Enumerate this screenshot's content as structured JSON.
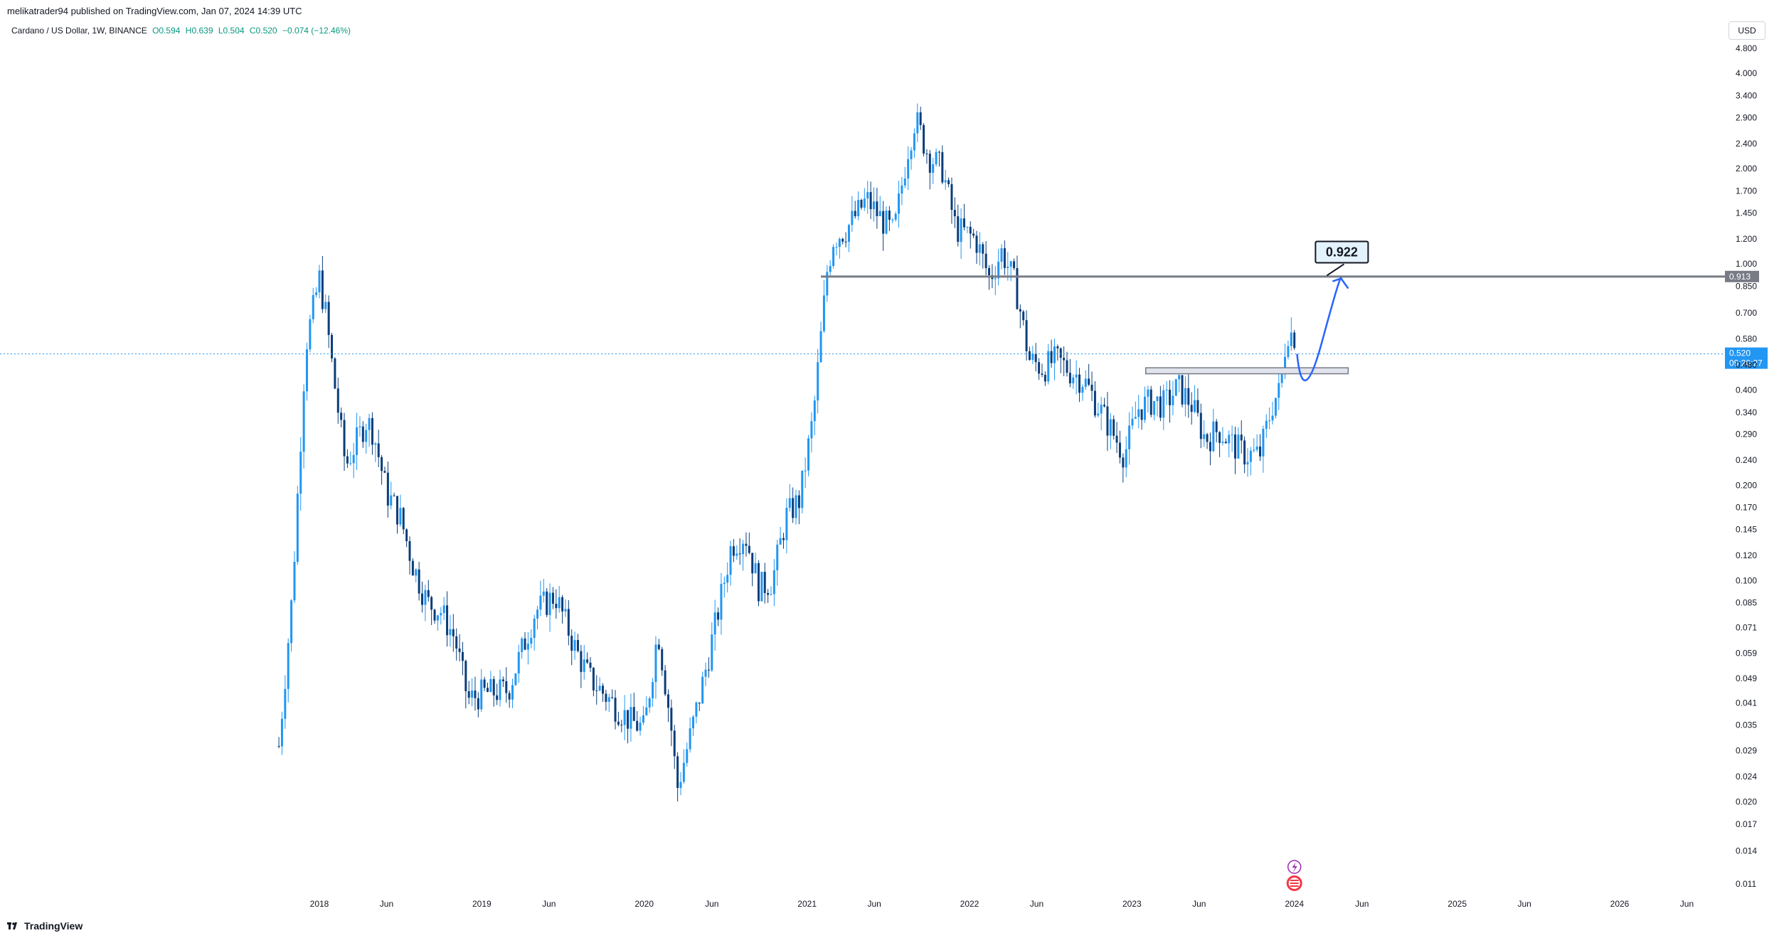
{
  "header": {
    "publisher": "melikatrader94 published on TradingView.com, Jan 07, 2024 14:39 UTC",
    "symbol": "Cardano / US Dollar, 1W, BINANCE",
    "open": "O0.594",
    "high": "H0.639",
    "low": "L0.504",
    "close": "C0.520",
    "change": "−0.074 (−12.46%)",
    "currency": "USD"
  },
  "footer": {
    "brand": "TradingView"
  },
  "colors": {
    "up": "#089981",
    "down": "#0a3d7a",
    "candle": "#2196f3",
    "arrow": "#2962ff",
    "level_line": "#787b86",
    "price_badge": "#2196f3",
    "level_badge": "#787b86"
  },
  "icons": {
    "chart_events": [
      "lightning-event-icon",
      "us-flag-event-icon"
    ],
    "footer_logo": "tradingview-logo-icon"
  },
  "chart_data": {
    "type": "candlestick",
    "title": "Cardano / US Dollar, 1W, BINANCE",
    "scale": "log",
    "grid": false,
    "y_ticks": [
      "4.800",
      "4.000",
      "3.400",
      "2.900",
      "2.400",
      "2.000",
      "1.700",
      "1.450",
      "1.200",
      "1.000",
      "0.850",
      "0.700",
      "0.580",
      "0.480",
      "0.400",
      "0.340",
      "0.290",
      "0.240",
      "0.200",
      "0.170",
      "0.145",
      "0.120",
      "0.100",
      "0.085",
      "0.071",
      "0.059",
      "0.049",
      "0.041",
      "0.035",
      "0.029",
      "0.024",
      "0.020",
      "0.017",
      "0.014",
      "0.011"
    ],
    "y_tick_values": [
      4.8,
      4.0,
      3.4,
      2.9,
      2.4,
      2.0,
      1.7,
      1.45,
      1.2,
      1.0,
      0.85,
      0.7,
      0.58,
      0.48,
      0.4,
      0.34,
      0.29,
      0.24,
      0.2,
      0.17,
      0.145,
      0.12,
      0.1,
      0.085,
      0.071,
      0.059,
      0.049,
      0.041,
      0.035,
      0.029,
      0.024,
      0.02,
      0.017,
      0.014,
      0.011
    ],
    "x_ticks": [
      "2018",
      "Jun",
      "2019",
      "Jun",
      "2020",
      "Jun",
      "2021",
      "Jun",
      "2022",
      "Jun",
      "2023",
      "Jun",
      "2024",
      "Jun",
      "2025",
      "Jun",
      "2026",
      "Jun"
    ],
    "x_tick_dates": [
      "2018-01-01",
      "2018-06-01",
      "2019-01-01",
      "2019-06-01",
      "2020-01-01",
      "2020-06-01",
      "2021-01-01",
      "2021-06-01",
      "2022-01-01",
      "2022-06-01",
      "2023-01-01",
      "2023-06-01",
      "2024-01-01",
      "2024-06-01",
      "2025-01-01",
      "2025-06-01",
      "2026-01-01",
      "2026-06-01"
    ],
    "close_series": [
      [
        "2017-10-02",
        0.03
      ],
      [
        "2017-11-01",
        0.09
      ],
      [
        "2017-12-01",
        0.55
      ],
      [
        "2018-01-01",
        0.9
      ],
      [
        "2018-01-15",
        0.7
      ],
      [
        "2018-02-01",
        0.45
      ],
      [
        "2018-03-01",
        0.23
      ],
      [
        "2018-04-15",
        0.32
      ],
      [
        "2018-05-01",
        0.3
      ],
      [
        "2018-06-01",
        0.19
      ],
      [
        "2018-07-01",
        0.16
      ],
      [
        "2018-08-01",
        0.11
      ],
      [
        "2018-09-01",
        0.085
      ],
      [
        "2018-10-01",
        0.08
      ],
      [
        "2018-11-01",
        0.066
      ],
      [
        "2018-12-01",
        0.042
      ],
      [
        "2019-01-01",
        0.044
      ],
      [
        "2019-03-01",
        0.045
      ],
      [
        "2019-05-01",
        0.08
      ],
      [
        "2019-06-15",
        0.09
      ],
      [
        "2019-08-01",
        0.06
      ],
      [
        "2019-09-01",
        0.049
      ],
      [
        "2019-10-15",
        0.042
      ],
      [
        "2019-12-01",
        0.036
      ],
      [
        "2020-01-01",
        0.034
      ],
      [
        "2020-02-01",
        0.07
      ],
      [
        "2020-03-01",
        0.035
      ],
      [
        "2020-03-15",
        0.022
      ],
      [
        "2020-04-15",
        0.033
      ],
      [
        "2020-05-15",
        0.05
      ],
      [
        "2020-06-15",
        0.08
      ],
      [
        "2020-07-15",
        0.13
      ],
      [
        "2020-08-15",
        0.14
      ],
      [
        "2020-09-15",
        0.095
      ],
      [
        "2020-10-15",
        0.1
      ],
      [
        "2020-11-15",
        0.16
      ],
      [
        "2020-12-15",
        0.18
      ],
      [
        "2021-01-15",
        0.33
      ],
      [
        "2021-02-15",
        0.95
      ],
      [
        "2021-03-01",
        1.2
      ],
      [
        "2021-04-01",
        1.3
      ],
      [
        "2021-05-15",
        1.6
      ],
      [
        "2021-06-15",
        1.4
      ],
      [
        "2021-07-15",
        1.25
      ],
      [
        "2021-08-15",
        2.3
      ],
      [
        "2021-09-01",
        2.9
      ],
      [
        "2021-10-01",
        2.2
      ],
      [
        "2021-11-01",
        2.0
      ],
      [
        "2021-12-01",
        1.3
      ],
      [
        "2022-01-15",
        1.2
      ],
      [
        "2022-02-15",
        0.9
      ],
      [
        "2022-03-15",
        1.1
      ],
      [
        "2022-04-15",
        0.85
      ],
      [
        "2022-05-15",
        0.5
      ],
      [
        "2022-06-15",
        0.47
      ],
      [
        "2022-07-15",
        0.5
      ],
      [
        "2022-08-15",
        0.46
      ],
      [
        "2022-09-15",
        0.43
      ],
      [
        "2022-10-15",
        0.36
      ],
      [
        "2022-11-15",
        0.3
      ],
      [
        "2022-12-15",
        0.25
      ],
      [
        "2023-01-15",
        0.35
      ],
      [
        "2023-02-15",
        0.37
      ],
      [
        "2023-03-15",
        0.36
      ],
      [
        "2023-04-15",
        0.41
      ],
      [
        "2023-05-15",
        0.36
      ],
      [
        "2023-06-15",
        0.28
      ],
      [
        "2023-07-15",
        0.3
      ],
      [
        "2023-08-15",
        0.27
      ],
      [
        "2023-09-15",
        0.25
      ],
      [
        "2023-10-15",
        0.25
      ],
      [
        "2023-11-15",
        0.37
      ],
      [
        "2023-12-01",
        0.4
      ],
      [
        "2023-12-15",
        0.62
      ],
      [
        "2024-01-01",
        0.594
      ],
      [
        "2024-01-07",
        0.52
      ]
    ],
    "last_price": {
      "value": "0.520",
      "countdown": "09:20:27"
    },
    "annotations": [
      {
        "type": "horizontal_line",
        "price": 0.913,
        "label": "0.913",
        "from": "2021-02-01"
      },
      {
        "type": "zone",
        "price_low": 0.45,
        "price_high": 0.47,
        "from": "2023-02-01",
        "to": "2024-05-01"
      },
      {
        "type": "projection_arrow",
        "from": [
          "2024-01-07",
          0.52
        ],
        "via": [
          "2024-01-20",
          0.44
        ],
        "to": [
          "2024-04-15",
          0.9
        ]
      },
      {
        "type": "callout",
        "text": "0.922",
        "anchor": [
          "2024-05-01",
          0.91
        ]
      },
      {
        "type": "current_price_line",
        "price": 0.52
      }
    ]
  }
}
